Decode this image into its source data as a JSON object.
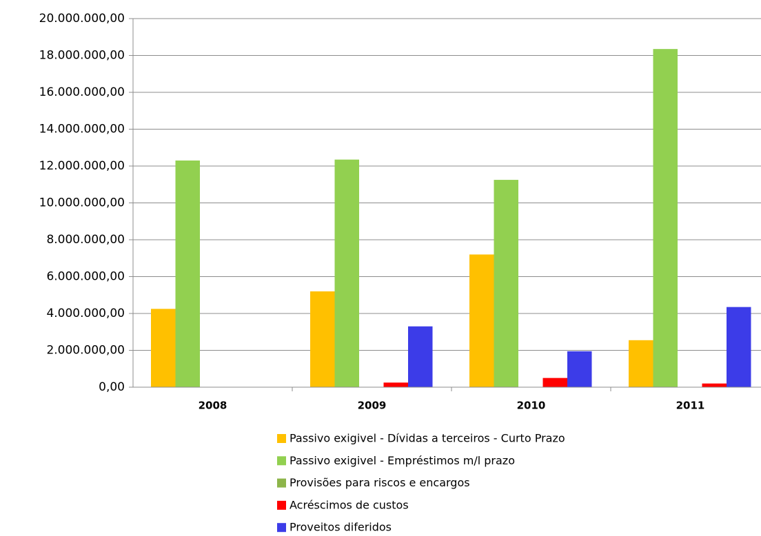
{
  "chart_data": {
    "type": "bar",
    "categories": [
      "2008",
      "2009",
      "2010",
      "2011"
    ],
    "series": [
      {
        "name": "Passivo exigivel - Dívidas a terceiros - Curto Prazo",
        "color": "#ffc000",
        "values": [
          4250000,
          5200000,
          7200000,
          2550000
        ]
      },
      {
        "name": "Passivo exigivel - Empréstimos m/l prazo",
        "color": "#92d050",
        "values": [
          12300000,
          12350000,
          11250000,
          18350000
        ]
      },
      {
        "name": "Provisões para riscos e encargos",
        "color": "#8db54a",
        "values": [
          0,
          0,
          0,
          0
        ]
      },
      {
        "name": "Acréscimos de custos",
        "color": "#ff0000",
        "values": [
          0,
          250000,
          500000,
          200000
        ]
      },
      {
        "name": "Proveitos diferidos",
        "color": "#3c3ce8",
        "values": [
          0,
          3300000,
          1950000,
          4350000
        ]
      }
    ],
    "ylim": [
      0,
      20000000
    ],
    "yticks": [
      {
        "value": 0,
        "label": "0,00"
      },
      {
        "value": 2000000,
        "label": "2.000.000,00"
      },
      {
        "value": 4000000,
        "label": "4.000.000,00"
      },
      {
        "value": 6000000,
        "label": "6.000.000,00"
      },
      {
        "value": 8000000,
        "label": "8.000.000,00"
      },
      {
        "value": 10000000,
        "label": "10.000.000,00"
      },
      {
        "value": 12000000,
        "label": "12.000.000,00"
      },
      {
        "value": 14000000,
        "label": "14.000.000,00"
      },
      {
        "value": 16000000,
        "label": "16.000.000,00"
      },
      {
        "value": 18000000,
        "label": "18.000.000,00"
      },
      {
        "value": 20000000,
        "label": "20.000.000,00"
      }
    ],
    "grid": true
  }
}
